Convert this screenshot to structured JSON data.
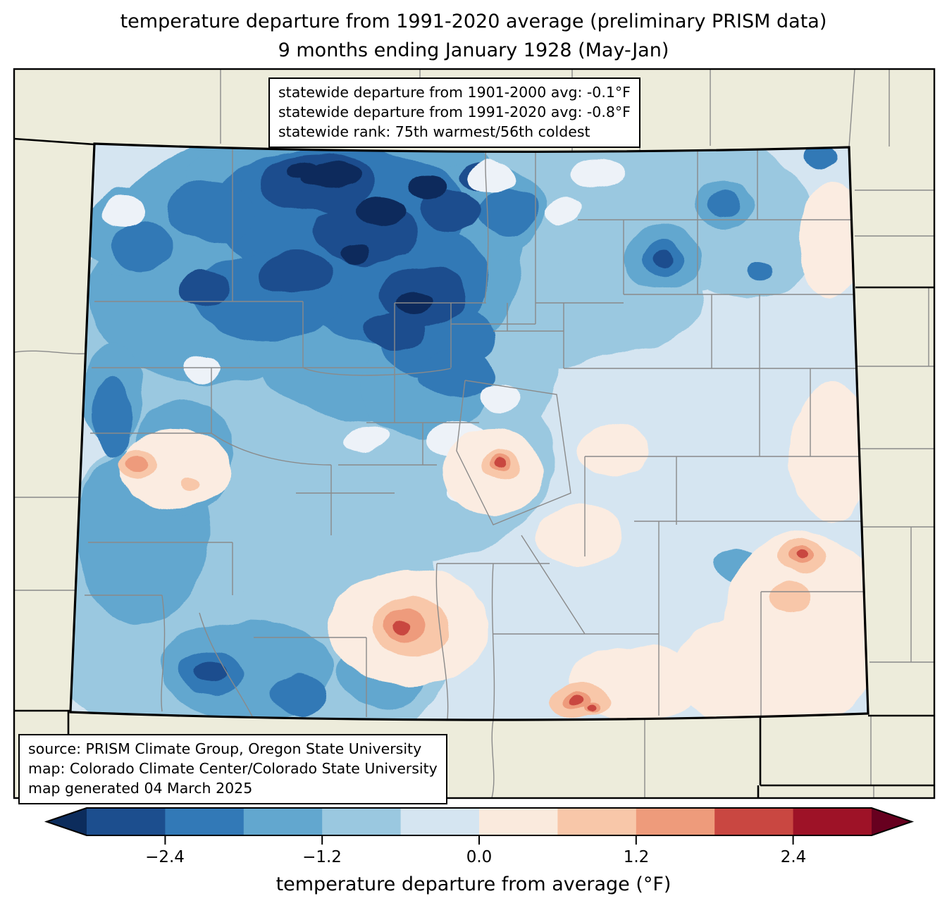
{
  "figure": {
    "title_line1": "temperature departure from 1991-2020 average (preliminary PRISM data)",
    "title_line2": "9 months ending January 1928 (May-Jan)"
  },
  "stats_box": {
    "line1": "statewide departure from 1901-2000 avg: -0.1°F",
    "line2": "statewide departure from 1991-2020 avg: -0.8°F",
    "line3": "statewide rank: 75th warmest/56th coldest"
  },
  "source_box": {
    "line1": "source: PRISM Climate Group, Oregon State University",
    "line2": "map: Colorado Climate Center/Colorado State University",
    "line3": "map generated 04 March 2025"
  },
  "colorbar": {
    "label": "temperature departure from average (°F)",
    "ticks": [
      "−2.4",
      "−1.2",
      "0.0",
      "1.2",
      "2.4"
    ],
    "boundaries": [
      -3.0,
      -2.4,
      -1.8,
      -1.2,
      -0.6,
      0.0,
      0.6,
      1.2,
      1.8,
      2.4,
      3.0
    ],
    "under_color": "#0c2c5c",
    "over_color": "#67001f",
    "segment_colors": [
      "#1c4e8e",
      "#3279b7",
      "#62a7cf",
      "#9ac8e0",
      "#d5e5f1",
      "#faeadd",
      "#f8c7a9",
      "#ee9b7b",
      "#c94741",
      "#9e1227"
    ]
  },
  "map": {
    "background_color": "#edecdb",
    "county_line_color": "#8a8a8a",
    "state_border_color": "#000000",
    "palette": {
      "navy": "#0c2c5c",
      "b1": "#1c4e8e",
      "b2": "#3279b6",
      "b3": "#62a7cf",
      "b4": "#9ac8e0",
      "b5": "#d5e5f1",
      "white": "#edf2f8",
      "pink": "#fbece1",
      "peach": "#f8c7a9",
      "salmon": "#ee9b7b",
      "red": "#c94741"
    }
  }
}
